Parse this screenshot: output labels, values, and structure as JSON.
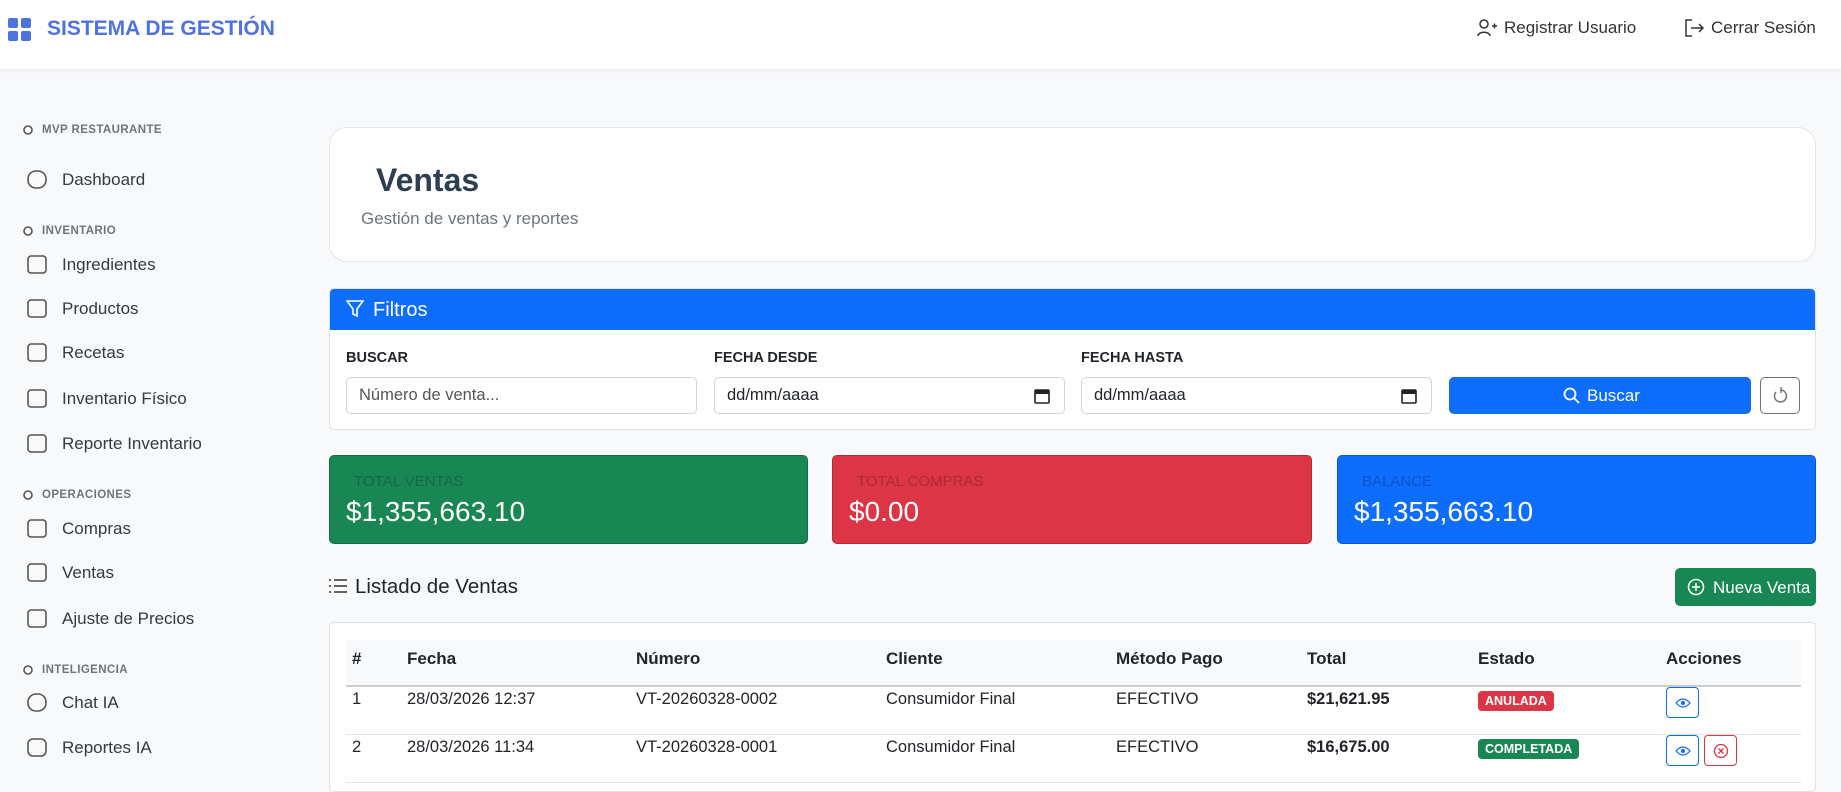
{
  "header": {
    "title": "SISTEMA DE GESTIÓN",
    "actions": [
      "Registrar Usuario",
      "Cerrar Sesión"
    ]
  },
  "sidebar": {
    "sections": [
      {
        "title": "MVP RESTAURANTE",
        "items": [
          "Dashboard"
        ]
      },
      {
        "title": "INVENTARIO",
        "items": [
          "Ingredientes",
          "Productos",
          "Recetas",
          "Inventario Físico",
          "Reporte Inventario"
        ]
      },
      {
        "title": "OPERACIONES",
        "items": [
          "Compras",
          "Ventas",
          "Ajuste de Precios"
        ]
      },
      {
        "title": "INTELIGENCIA",
        "items": [
          "Chat IA",
          "Reportes IA"
        ]
      }
    ]
  },
  "page": {
    "title": "Ventas",
    "subtitle": "Gestión de ventas y reportes"
  },
  "filters": {
    "title": "Filtros",
    "fields": [
      {
        "label": "BUSCAR",
        "placeholder": "Número de venta..."
      },
      {
        "label": "FECHA DESDE",
        "placeholder": "dd/mm/aaaa"
      },
      {
        "label": "FECHA HASTA",
        "placeholder": "dd/mm/aaaa"
      }
    ],
    "button": "Buscar"
  },
  "stats": [
    {
      "label": "TOTAL VENTAS",
      "value": "$1,355,663.10"
    },
    {
      "label": "TOTAL COMPRAS",
      "value": "$0.00"
    },
    {
      "label": "BALANCE",
      "value": "$1,355,663.10"
    }
  ],
  "table": {
    "title": "Listado de Ventas",
    "new_button": "Nueva Venta",
    "columns": [
      "#",
      "Fecha",
      "Número",
      "Cliente",
      "Método Pago",
      "Total",
      "Estado",
      "Acciones"
    ],
    "rows": [
      [
        "1",
        "28/03/2026 12:37",
        "VT-20260328-0002",
        "Consumidor Final",
        "EFECTIVO",
        "$21,621.95",
        "ANULADA"
      ],
      [
        "2",
        "28/03/2026 11:34",
        "VT-20260328-0001",
        "Consumidor Final",
        "EFECTIVO",
        "$16,675.00",
        "COMPLETADA"
      ]
    ]
  }
}
